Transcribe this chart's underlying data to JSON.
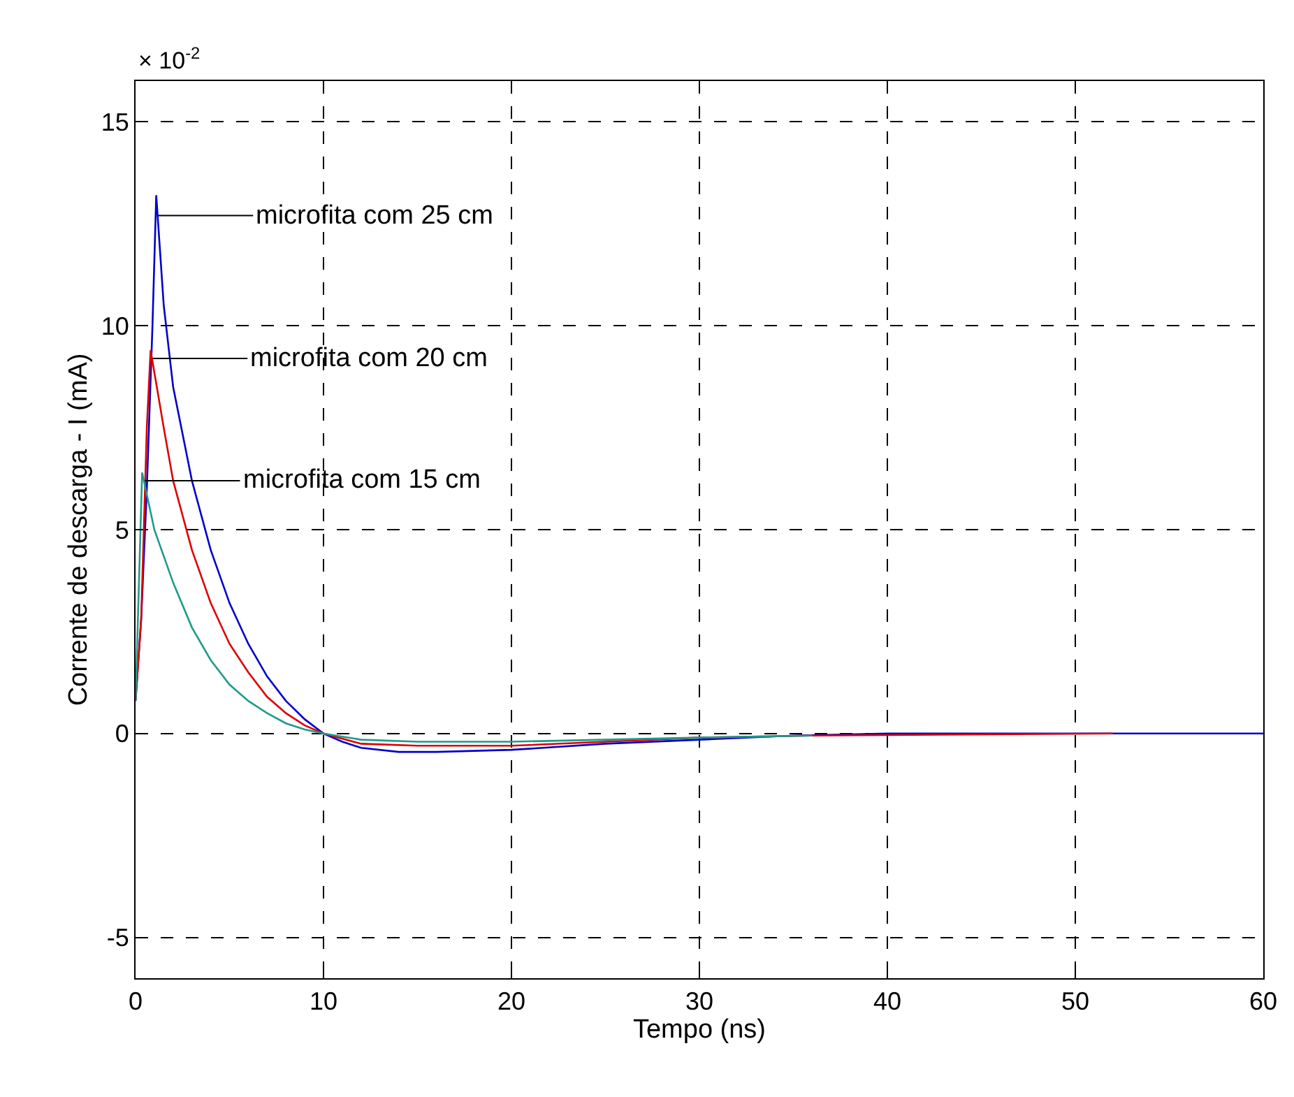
{
  "chart_data": {
    "type": "line",
    "xlabel": "Tempo (ns)",
    "ylabel": "Corrente de descarga - I (mA)",
    "xlim": [
      0,
      60
    ],
    "xticks": [
      0,
      10,
      20,
      30,
      40,
      50,
      60
    ],
    "ylim": [
      -6,
      16
    ],
    "yticks": [
      -5,
      0,
      5,
      10,
      15
    ],
    "grid": true,
    "legend": false,
    "line_style": "solid",
    "marker": "none",
    "series": [
      {
        "color": "#0000cc",
        "x": [
          0,
          0.3,
          0.6,
          0.9,
          1.1,
          1.5,
          2,
          3,
          4,
          5,
          6,
          7,
          8,
          9,
          10,
          11,
          12,
          14,
          16,
          20,
          25,
          30,
          35,
          40,
          60
        ],
        "values": [
          0.8,
          2.8,
          6,
          10,
          13.2,
          10.5,
          8.5,
          6.2,
          4.5,
          3.2,
          2.2,
          1.4,
          0.8,
          0.35,
          0,
          -0.2,
          -0.35,
          -0.45,
          -0.45,
          -0.4,
          -0.25,
          -0.15,
          -0.05,
          0,
          0
        ]
      },
      {
        "color": "#dd0000",
        "x": [
          0,
          0.3,
          0.6,
          0.8,
          1.5,
          2,
          3,
          4,
          5,
          6,
          7,
          8,
          9,
          10,
          12,
          15,
          20,
          25,
          30,
          36,
          52
        ],
        "values": [
          0.8,
          2.8,
          7.5,
          9.4,
          7.5,
          6.2,
          4.5,
          3.2,
          2.2,
          1.5,
          0.9,
          0.5,
          0.2,
          0,
          -0.25,
          -0.3,
          -0.3,
          -0.2,
          -0.1,
          -0.05,
          0
        ]
      },
      {
        "color": "#1f9a8a",
        "x": [
          0,
          0.35,
          1,
          2,
          3,
          4,
          5,
          6,
          7,
          8,
          9,
          10,
          12,
          15,
          20,
          25,
          30,
          36
        ],
        "values": [
          0.8,
          6.4,
          5,
          3.7,
          2.6,
          1.8,
          1.2,
          0.8,
          0.5,
          0.25,
          0.1,
          0,
          -0.15,
          -0.2,
          -0.2,
          -0.15,
          -0.1,
          -0.05
        ]
      }
    ],
    "annotations": [
      {
        "text": "microfita com 25 cm",
        "x": 1.2,
        "y": 12.7
      },
      {
        "text": "microfita com 20 cm",
        "x": 0.9,
        "y": 9.2
      },
      {
        "text": "microfita com 15 cm",
        "x": 0.5,
        "y": 6.2
      },
      "× 10$^{-2}$"
    ]
  }
}
